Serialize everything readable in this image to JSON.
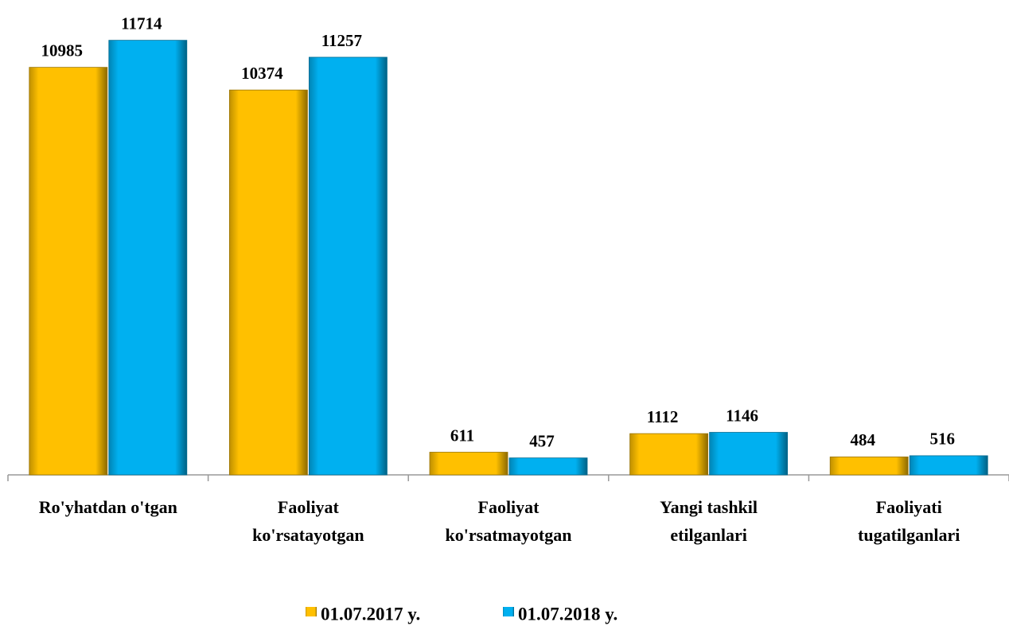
{
  "chart_data": {
    "type": "bar",
    "categories": [
      [
        "Ro'yhatdan o'tgan"
      ],
      [
        "Faoliyat",
        "ko'rsatayotgan"
      ],
      [
        "Faoliyat",
        "ko'rsatmayotgan"
      ],
      [
        "Yangi tashkil",
        "etilganlari"
      ],
      [
        "Faoliyati",
        "tugatilganlari"
      ]
    ],
    "series": [
      {
        "name": "01.07.2017 y.",
        "color": "#ffc000",
        "values": [
          10985,
          10374,
          611,
          1112,
          484
        ]
      },
      {
        "name": "01.07.2018 y.",
        "color": "#00b0f0",
        "values": [
          11714,
          11257,
          457,
          1146,
          516
        ]
      }
    ],
    "ylim": [
      0,
      12800
    ]
  }
}
